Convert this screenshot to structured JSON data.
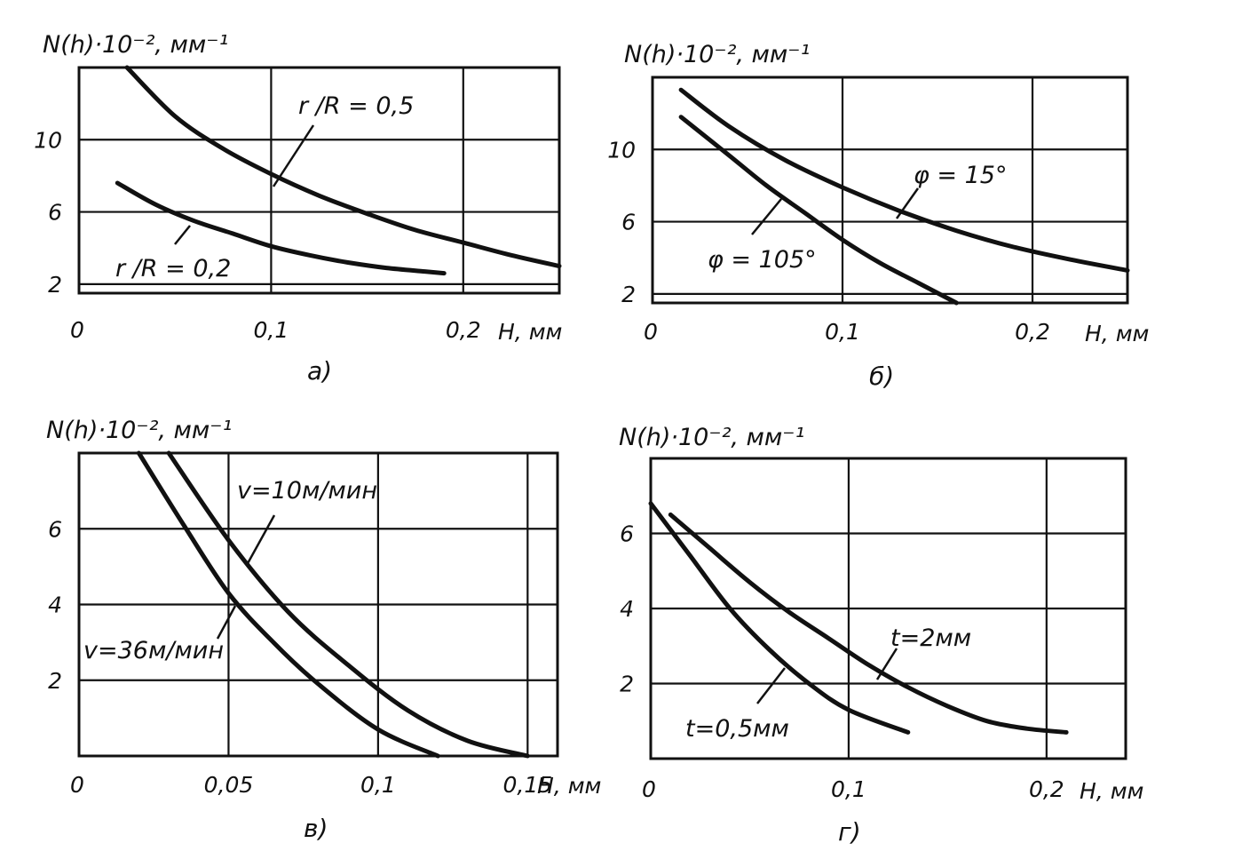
{
  "figure": {
    "chart_data": [
      {
        "type": "line",
        "panel": "а",
        "caption": "а)",
        "ylabel": "N(h)·10⁻², мм⁻¹",
        "xlabel": "H, мм",
        "x_ticks": [
          0,
          0.1,
          0.2
        ],
        "x_tick_labels": [
          "0",
          "0,1",
          "0,2"
        ],
        "y_ticks": [
          2,
          6,
          10
        ],
        "y_tick_labels": [
          "2",
          "6",
          "10"
        ],
        "xlim": [
          0,
          0.25
        ],
        "ylim": [
          1.5,
          14
        ],
        "grid": true,
        "series": [
          {
            "name": "r/R = 0,5",
            "label": "r /R = 0,5",
            "x": [
              0.025,
              0.05,
              0.075,
              0.1,
              0.125,
              0.15,
              0.175,
              0.2,
              0.225,
              0.25
            ],
            "y": [
              14,
              11.3,
              9.5,
              8.1,
              6.9,
              5.9,
              5.0,
              4.3,
              3.6,
              3.0
            ]
          },
          {
            "name": "r/R = 0,2",
            "label": "r /R = 0,2",
            "x": [
              0.02,
              0.04,
              0.06,
              0.08,
              0.1,
              0.12,
              0.14,
              0.16,
              0.18,
              0.19
            ],
            "y": [
              7.6,
              6.4,
              5.5,
              4.8,
              4.1,
              3.6,
              3.2,
              2.9,
              2.7,
              2.6
            ]
          }
        ]
      },
      {
        "type": "line",
        "panel": "б",
        "caption": "б)",
        "ylabel": "N(h)·10⁻², мм⁻¹",
        "xlabel": "H, мм",
        "x_ticks": [
          0,
          0.1,
          0.2
        ],
        "x_tick_labels": [
          "0",
          "0,1",
          "0,2"
        ],
        "y_ticks": [
          2,
          6,
          10
        ],
        "y_tick_labels": [
          "2",
          "6",
          "10"
        ],
        "xlim": [
          0,
          0.25
        ],
        "ylim": [
          1.5,
          14
        ],
        "grid": true,
        "series": [
          {
            "name": "φ = 15°",
            "label": "φ = 15°",
            "x": [
              0.015,
              0.04,
              0.07,
              0.1,
              0.13,
              0.16,
              0.19,
              0.22,
              0.25
            ],
            "y": [
              13.3,
              11.3,
              9.4,
              7.9,
              6.6,
              5.5,
              4.6,
              3.9,
              3.3
            ]
          },
          {
            "name": "φ = 105°",
            "label": "φ = 105°",
            "x": [
              0.015,
              0.04,
              0.06,
              0.08,
              0.1,
              0.12,
              0.14,
              0.16
            ],
            "y": [
              11.8,
              9.7,
              8.0,
              6.5,
              5.0,
              3.7,
              2.6,
              1.5
            ]
          }
        ]
      },
      {
        "type": "line",
        "panel": "в",
        "caption": "в)",
        "ylabel": "N(h)·10⁻², мм⁻¹",
        "xlabel": "H, мм",
        "x_ticks": [
          0,
          0.05,
          0.1,
          0.15
        ],
        "x_tick_labels": [
          "0",
          "0,05",
          "0,1",
          "0,15"
        ],
        "y_ticks": [
          2,
          4,
          6
        ],
        "y_tick_labels": [
          "2",
          "4",
          "6"
        ],
        "xlim": [
          0,
          0.16
        ],
        "ylim": [
          0,
          8
        ],
        "grid": true,
        "series": [
          {
            "name": "v=10м/мин",
            "label": "v=10м/мин",
            "x": [
              0.03,
              0.05,
              0.07,
              0.09,
              0.11,
              0.13,
              0.15
            ],
            "y": [
              8.0,
              5.7,
              3.8,
              2.4,
              1.2,
              0.4,
              0.0
            ]
          },
          {
            "name": "v=36м/мин",
            "label": "v=36м/мин",
            "x": [
              0.02,
              0.035,
              0.05,
              0.065,
              0.08,
              0.1,
              0.12
            ],
            "y": [
              8.0,
              6.1,
              4.3,
              3.0,
              1.9,
              0.7,
              0.0
            ]
          }
        ]
      },
      {
        "type": "line",
        "panel": "г",
        "caption": "г)",
        "ylabel": "N(h)·10⁻², мм⁻¹",
        "xlabel": "H, мм",
        "x_ticks": [
          0,
          0.1,
          0.2
        ],
        "x_tick_labels": [
          "0",
          "0,1",
          "0,2"
        ],
        "y_ticks": [
          2,
          4,
          6
        ],
        "y_tick_labels": [
          "2",
          "4",
          "6"
        ],
        "xlim": [
          0,
          0.24
        ],
        "ylim": [
          0,
          8
        ],
        "grid": true,
        "series": [
          {
            "name": "t=2мм",
            "label": "t=2мм",
            "x": [
              0.01,
              0.03,
              0.05,
              0.07,
              0.09,
              0.11,
              0.13,
              0.15,
              0.17,
              0.19,
              0.21
            ],
            "y": [
              6.5,
              5.6,
              4.7,
              3.9,
              3.2,
              2.5,
              1.9,
              1.4,
              1.0,
              0.8,
              0.7
            ]
          },
          {
            "name": "t=0,5мм",
            "label": "t=0,5мм",
            "x": [
              0.0,
              0.02,
              0.04,
              0.06,
              0.08,
              0.1,
              0.13
            ],
            "y": [
              6.8,
              5.4,
              4.0,
              2.9,
              2.0,
              1.3,
              0.7
            ]
          }
        ]
      }
    ]
  }
}
